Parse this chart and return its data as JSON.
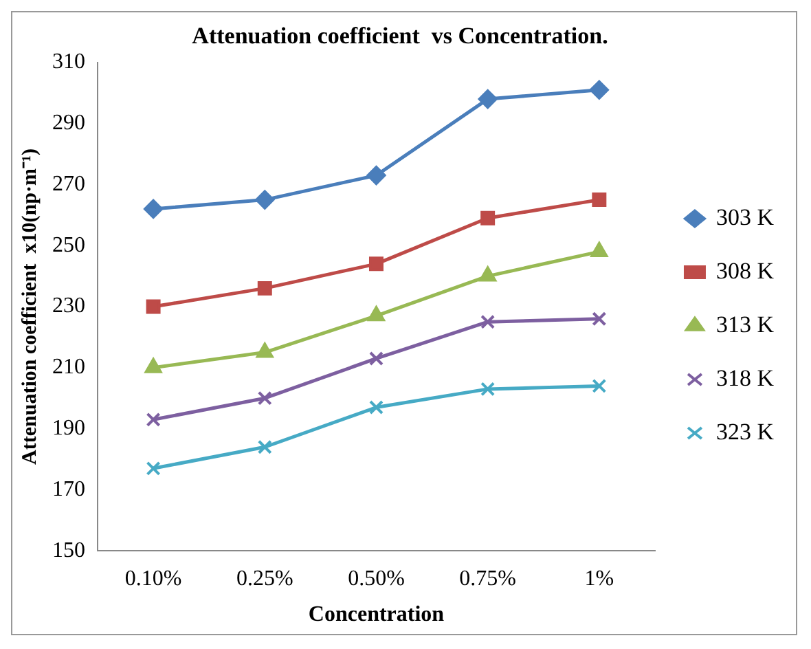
{
  "chart_data": {
    "type": "line",
    "title": "Attenuation coefficient  vs Concentration.",
    "xlabel": "Concentration",
    "ylabel": "Attenuation coefficient  x10(np·m⁻¹)",
    "categories": [
      "0.10%",
      "0.25%",
      "0.50%",
      "0.75%",
      "1%"
    ],
    "series": [
      {
        "name": "303 K",
        "color": "#4a7ebb",
        "marker": "diamond",
        "values": [
          262,
          265,
          273,
          298,
          301
        ]
      },
      {
        "name": "308 K",
        "color": "#be4b48",
        "marker": "square",
        "values": [
          230,
          236,
          244,
          259,
          265
        ]
      },
      {
        "name": "313 K",
        "color": "#98b954",
        "marker": "triangle",
        "values": [
          210,
          215,
          227,
          240,
          248
        ]
      },
      {
        "name": "318 K",
        "color": "#7d5fa0",
        "marker": "cross",
        "values": [
          193,
          200,
          213,
          225,
          226
        ]
      },
      {
        "name": "323 K",
        "color": "#46aac5",
        "marker": "cross",
        "values": [
          177,
          184,
          197,
          203,
          204
        ]
      }
    ],
    "ylim": [
      150,
      310
    ],
    "yticks": [
      150,
      170,
      190,
      210,
      230,
      250,
      270,
      290,
      310
    ],
    "grid": false,
    "legend": "right",
    "line_style": "solid"
  }
}
